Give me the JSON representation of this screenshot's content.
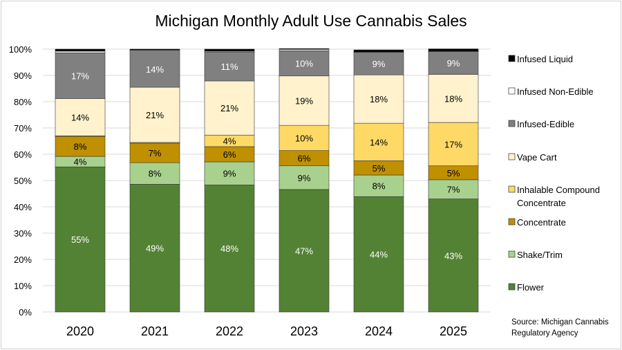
{
  "chart_data": {
    "type": "bar",
    "stacked": true,
    "normalized": true,
    "title": "Michigan Monthly Adult Use Cannabis Sales",
    "xlabel": "",
    "ylabel": "",
    "ylim": [
      0,
      100
    ],
    "yticks": [
      "0%",
      "10%",
      "20%",
      "30%",
      "40%",
      "50%",
      "60%",
      "70%",
      "80%",
      "90%",
      "100%"
    ],
    "grid": true,
    "legend_position": "right",
    "categories": [
      "2020",
      "2021",
      "2022",
      "2023",
      "2024",
      "2025"
    ],
    "series": [
      {
        "name": "Flower",
        "color": "#548235",
        "label_color": "#ffffff",
        "values": [
          55.2,
          48.6,
          48.3,
          46.6,
          43.9,
          43.0
        ]
      },
      {
        "name": "Shake/Trim",
        "color": "#a9d18e",
        "label_color": "#000000",
        "values": [
          4.0,
          8.2,
          8.8,
          9.0,
          8.2,
          7.3
        ]
      },
      {
        "name": "Concentrate",
        "color": "#bf9000",
        "label_color": "#000000",
        "values": [
          7.6,
          7.4,
          5.8,
          5.8,
          5.4,
          5.3
        ]
      },
      {
        "name": "Inhalable Compound Concentrate",
        "color": "#ffd966",
        "label_color": "#000000",
        "values": [
          0.2,
          0.3,
          4.4,
          9.6,
          14.3,
          16.5
        ]
      },
      {
        "name": "Vape Cart",
        "color": "#fff2cc",
        "label_color": "#000000",
        "values": [
          14.2,
          21.0,
          20.6,
          18.8,
          18.4,
          18.3
        ]
      },
      {
        "name": "Infused-Edible",
        "color": "#808080",
        "label_color": "#ffffff",
        "values": [
          17.4,
          13.8,
          11.0,
          9.6,
          8.6,
          8.7
        ]
      },
      {
        "name": "Infused Non-Edible",
        "color": "#ffffff",
        "label_color": "#000000",
        "values": [
          0.6,
          0.3,
          0.3,
          0.5,
          0.1,
          0.1
        ]
      },
      {
        "name": "Infused Liquid",
        "color": "#000000",
        "label_color": "#ffffff",
        "values": [
          0.8,
          0.4,
          0.8,
          0.3,
          0.8,
          0.9
        ]
      }
    ],
    "legend_order": [
      "Infused Liquid",
      "Infused Non-Edible",
      "Infused-Edible",
      "Vape Cart",
      "Inhalable Compound Concentrate",
      "Concentrate",
      "Shake/Trim",
      "Flower"
    ],
    "annotations": [
      "Source: Michigan Cannabis",
      "Regulatory Agency"
    ]
  }
}
